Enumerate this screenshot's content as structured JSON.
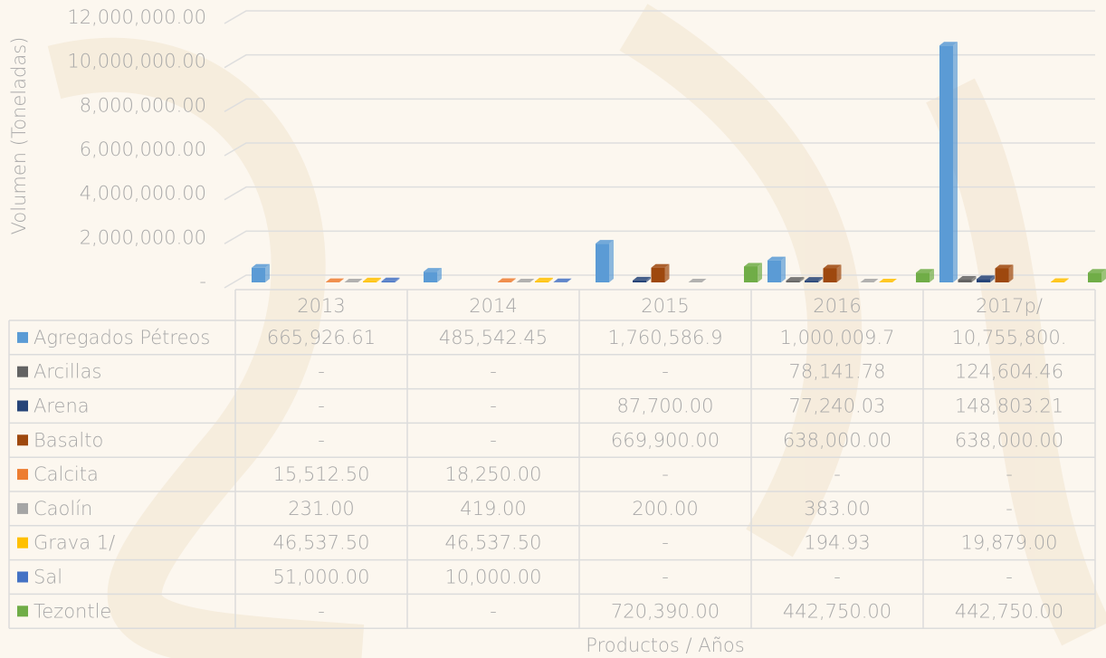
{
  "chart_data": {
    "type": "bar",
    "y_label": "Volumen (Toneladas)",
    "x_label": "Productos / Años",
    "categories": [
      "2013",
      "2014",
      "2015",
      "2016",
      "2017p/"
    ],
    "ylim": [
      0,
      12000000
    ],
    "yticks": [
      {
        "value": 0,
        "label": "-"
      },
      {
        "value": 2000000,
        "label": "2,000,000.00"
      },
      {
        "value": 4000000,
        "label": "4,000,000.00"
      },
      {
        "value": 6000000,
        "label": "6,000,000.00"
      },
      {
        "value": 8000000,
        "label": "8,000,000.00"
      },
      {
        "value": 10000000,
        "label": "10,000,000.00"
      },
      {
        "value": 12000000,
        "label": "12,000,000.00"
      }
    ],
    "grid": true,
    "series": [
      {
        "name": "Agregados Pétreos",
        "color": "#5b9bd5",
        "values": [
          665926.61,
          485542.45,
          1760586.9,
          1000009.7,
          10755800
        ],
        "value_labels": [
          "665,926.61",
          "485,542.45",
          "1,760,586.9",
          "1,000,009.7",
          "10,755,800."
        ]
      },
      {
        "name": "Arcillas",
        "color": "#636363",
        "values": [
          null,
          null,
          null,
          78141.78,
          124604.46
        ],
        "value_labels": [
          "-",
          "-",
          "-",
          "78,141.78",
          "124,604.46"
        ]
      },
      {
        "name": "Arena",
        "color": "#264478",
        "values": [
          null,
          null,
          87700,
          77240.03,
          148803.21
        ],
        "value_labels": [
          "-",
          "-",
          "87,700.00",
          "77,240.03",
          "148,803.21"
        ]
      },
      {
        "name": "Basalto",
        "color": "#9e480e",
        "values": [
          null,
          null,
          669900,
          638000,
          638000
        ],
        "value_labels": [
          "-",
          "-",
          "669,900.00",
          "638,000.00",
          "638,000.00"
        ]
      },
      {
        "name": "Calcita",
        "color": "#ed7d31",
        "values": [
          15512.5,
          18250,
          null,
          null,
          null
        ],
        "value_labels": [
          "15,512.50",
          "18,250.00",
          "-",
          "-",
          "-"
        ]
      },
      {
        "name": "Caolín",
        "color": "#a5a5a5",
        "values": [
          231,
          419,
          200,
          383,
          null
        ],
        "value_labels": [
          "231.00",
          "419.00",
          "200.00",
          "383.00",
          "-"
        ]
      },
      {
        "name": "Grava 1/",
        "color": "#ffc000",
        "values": [
          46537.5,
          46537.5,
          null,
          194.93,
          19879
        ],
        "value_labels": [
          "46,537.50",
          "46,537.50",
          "-",
          "194.93",
          "19,879.00"
        ]
      },
      {
        "name": "Sal",
        "color": "#4472c4",
        "values": [
          51000,
          10000,
          null,
          null,
          null
        ],
        "value_labels": [
          "51,000.00",
          "10,000.00",
          "-",
          "-",
          "-"
        ]
      },
      {
        "name": "Tezontle",
        "color": "#70ad47",
        "values": [
          null,
          null,
          720390,
          442750,
          442750
        ],
        "value_labels": [
          "-",
          "-",
          "720,390.00",
          "442,750.00",
          "442,750.00"
        ]
      }
    ]
  }
}
